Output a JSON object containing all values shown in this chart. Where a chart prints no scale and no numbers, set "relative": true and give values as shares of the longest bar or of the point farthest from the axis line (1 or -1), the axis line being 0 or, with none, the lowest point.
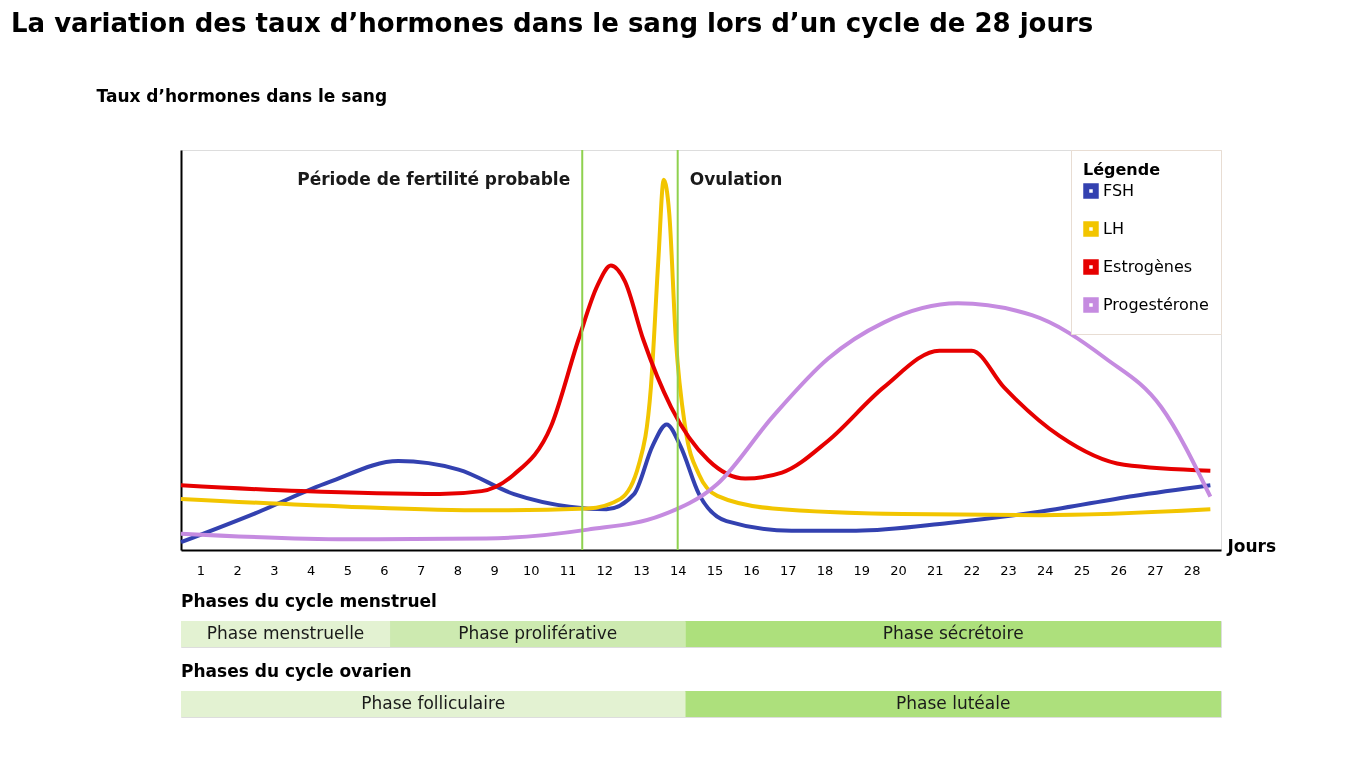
{
  "chart_data": [
    {
      "type": "line",
      "title": "La variation des taux d’hormones dans le sang lors d’un cycle de 28 jours",
      "ylabel": "Taux d’hormones dans le sang",
      "xlabel": "Jours",
      "relative": true,
      "xlim": [
        0.47,
        28.8
      ],
      "xticks": [
        1,
        2,
        3,
        4,
        5,
        6,
        7,
        8,
        9,
        10,
        11,
        12,
        13,
        14,
        15,
        16,
        17,
        18,
        19,
        20,
        21,
        22,
        23,
        24,
        25,
        26,
        27,
        28
      ],
      "grid": false,
      "legend": "top right",
      "legend_title": "Légende",
      "line_style": "solid",
      "marker": "none",
      "ref_lines": [
        {
          "axis": "x",
          "value": 11.4,
          "label": "Période de fertilité probable",
          "color": "#8fd14f"
        },
        {
          "axis": "x",
          "value": 14,
          "label": "Ovulation",
          "color": "#8fd14f"
        }
      ],
      "series": [
        {
          "name": "FSH",
          "color": "#3341b0",
          "x": [
            0.47,
            2.49,
            4.5,
            6.39,
            8.03,
            9.54,
            11.05,
            12.06,
            12.81,
            13.32,
            13.7,
            14.07,
            14.58,
            15.33,
            17.1,
            18.86,
            21.38,
            23.9,
            26.42,
            28.51
          ],
          "values": [
            0.021,
            0.099,
            0.183,
            0.24,
            0.217,
            0.151,
            0.117,
            0.11,
            0.151,
            0.282,
            0.339,
            0.282,
            0.151,
            0.078,
            0.052,
            0.052,
            0.073,
            0.104,
            0.146,
            0.175
          ]
        },
        {
          "name": "LH",
          "color": "#f2c500",
          "x": [
            0.47,
            5.01,
            8.78,
            11.55,
            12.44,
            12.94,
            13.27,
            13.47,
            13.62,
            13.77,
            13.95,
            14.2,
            14.58,
            15.08,
            16.59,
            20.12,
            23.9,
            28.51
          ],
          "values": [
            0.138,
            0.117,
            0.107,
            0.112,
            0.138,
            0.23,
            0.439,
            0.778,
            1.0,
            0.909,
            0.569,
            0.334,
            0.204,
            0.146,
            0.112,
            0.097,
            0.094,
            0.11
          ]
        },
        {
          "name": "Estrogènes",
          "color": "#e60000",
          "x": [
            0.47,
            3.75,
            7.52,
            8.66,
            9.54,
            10.55,
            11.3,
            11.81,
            12.18,
            12.56,
            13.06,
            13.82,
            14.83,
            15.84,
            16.84,
            18.1,
            19.61,
            21.13,
            22.01,
            22.89,
            24.4,
            26.16,
            28.51
          ],
          "values": [
            0.175,
            0.159,
            0.151,
            0.159,
            0.204,
            0.334,
            0.569,
            0.713,
            0.768,
            0.726,
            0.569,
            0.386,
            0.243,
            0.193,
            0.209,
            0.295,
            0.439,
            0.538,
            0.538,
            0.439,
            0.308,
            0.23,
            0.214
          ]
        },
        {
          "name": "Progestérone",
          "color": "#c58be0",
          "x": [
            0.47,
            5.01,
            8.78,
            11.55,
            13.57,
            15.08,
            16.59,
            18.1,
            19.61,
            21.63,
            23.65,
            25.66,
            27.17,
            28.51
          ],
          "values": [
            0.044,
            0.029,
            0.031,
            0.055,
            0.094,
            0.178,
            0.36,
            0.517,
            0.614,
            0.666,
            0.634,
            0.517,
            0.386,
            0.144
          ]
        }
      ]
    },
    {
      "type": "bar",
      "title": "Phases du cycle menstruel",
      "orientation": "horizontal",
      "stacked": true,
      "relative": true,
      "categories": [
        null
      ],
      "series": [
        {
          "name": "Phase menstruelle",
          "color": "#e3f2d2",
          "values": [
            0.201
          ]
        },
        {
          "name": "Phase proliférative",
          "color": "#cdeab0",
          "values": [
            0.284
          ]
        },
        {
          "name": "Phase sécrétoire",
          "color": "#ade07c",
          "values": [
            0.515
          ]
        }
      ]
    },
    {
      "type": "bar",
      "title": "Phases du cycle ovarien",
      "orientation": "horizontal",
      "stacked": true,
      "relative": true,
      "categories": [
        null
      ],
      "series": [
        {
          "name": "Phase folliculaire",
          "color": "#e3f2d2",
          "values": [
            0.485
          ]
        },
        {
          "name": "Phase lutéale",
          "color": "#ade07c",
          "values": [
            0.515
          ]
        }
      ]
    }
  ]
}
